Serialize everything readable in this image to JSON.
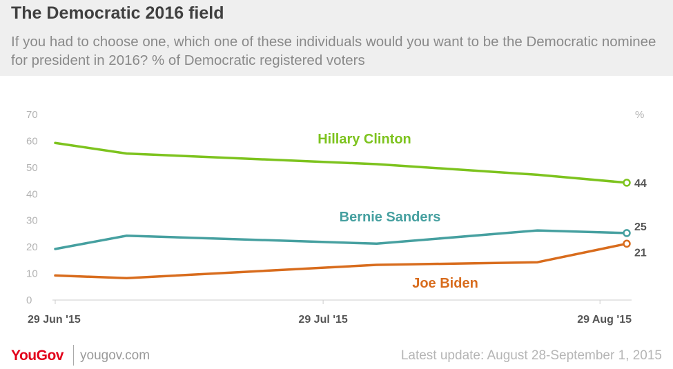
{
  "header": {
    "title": "The Democratic 2016 field",
    "subtitle": "If you had to choose one, which one of these individuals would you want to be the Democratic nominee for president in 2016? % of Democratic registered voters"
  },
  "chart_data": {
    "type": "line",
    "x": [
      "2015-06-29",
      "2015-07-07",
      "2015-08-04",
      "2015-08-22",
      "2015-09-01"
    ],
    "x_tick_labels": [
      "29 Jun '15",
      "29 Jul '15",
      "29 Aug '15"
    ],
    "x_ticks": [
      "2015-06-29",
      "2015-07-29",
      "2015-08-29"
    ],
    "ylim": [
      0,
      70
    ],
    "y_ticks": [
      0,
      10,
      20,
      30,
      40,
      50,
      60,
      70
    ],
    "ylabel": "%",
    "grid": false,
    "series": [
      {
        "name": "Hillary Clinton",
        "color": "#7dc31e",
        "values": [
          59,
          55,
          51,
          47,
          44
        ],
        "end_label": "44"
      },
      {
        "name": "Bernie Sanders",
        "color": "#46a0a0",
        "values": [
          19,
          24,
          21,
          26,
          25
        ],
        "end_label": "25"
      },
      {
        "name": "Joe Biden",
        "color": "#d86c1d",
        "values": [
          9,
          8,
          13,
          14,
          21
        ],
        "end_label": "21"
      }
    ]
  },
  "footer": {
    "logo": "YouGov",
    "site": "yougov.com",
    "update": "Latest update: August 28-September 1, 2015"
  }
}
